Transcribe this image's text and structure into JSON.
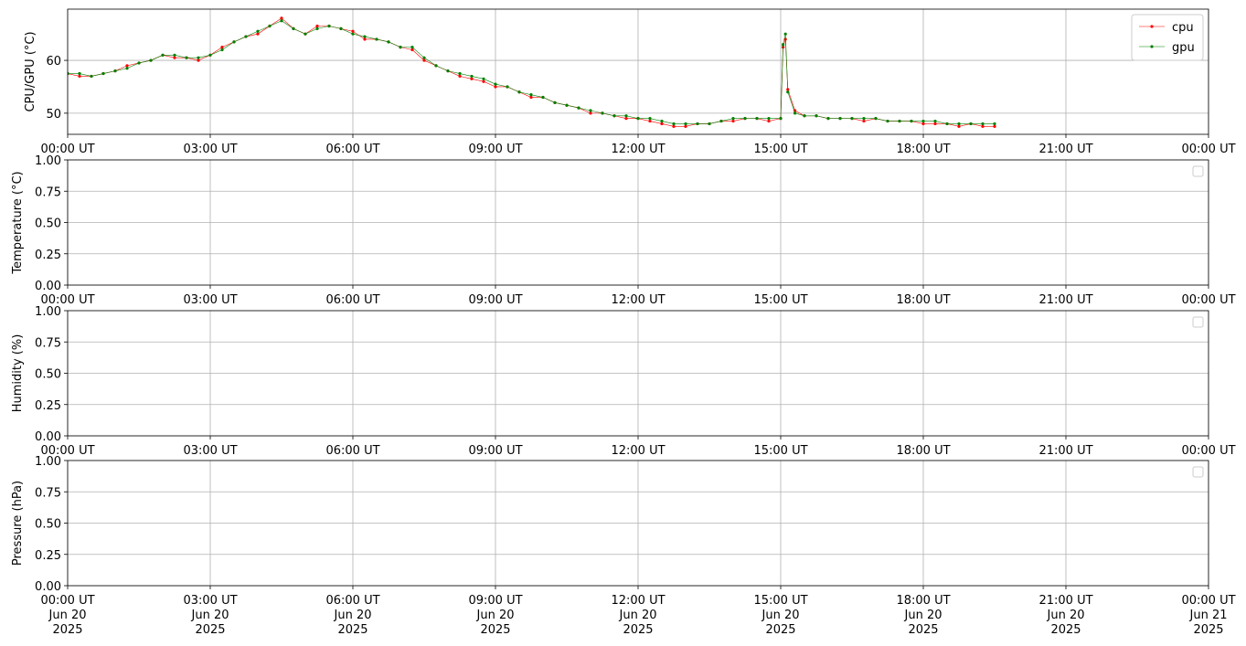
{
  "chart_data": [
    {
      "type": "line",
      "ylabel": "CPU/GPU (°C)",
      "grid": true,
      "legend": "upper right",
      "xlim": [
        0,
        24
      ],
      "xticks": [
        {
          "value": 0,
          "label": "00:00 UT"
        },
        {
          "value": 3,
          "label": "03:00 UT"
        },
        {
          "value": 6,
          "label": "06:00 UT"
        },
        {
          "value": 9,
          "label": "09:00 UT"
        },
        {
          "value": 12,
          "label": "12:00 UT"
        },
        {
          "value": 15,
          "label": "15:00 UT"
        },
        {
          "value": 18,
          "label": "18:00 UT"
        },
        {
          "value": 21,
          "label": "21:00 UT"
        },
        {
          "value": 24,
          "label": "00:00 UT"
        }
      ],
      "ylim": [
        46.0,
        69.7
      ],
      "yticks": [
        50,
        60
      ],
      "x": [
        0,
        0.25,
        0.5,
        0.75,
        1,
        1.25,
        1.5,
        1.75,
        2,
        2.25,
        2.5,
        2.75,
        3,
        3.25,
        3.5,
        3.75,
        4,
        4.25,
        4.5,
        4.75,
        5,
        5.25,
        5.5,
        5.75,
        6,
        6.25,
        6.5,
        6.75,
        7,
        7.25,
        7.5,
        7.75,
        8,
        8.25,
        8.5,
        8.75,
        9,
        9.25,
        9.5,
        9.75,
        10,
        10.25,
        10.5,
        10.75,
        11,
        11.25,
        11.5,
        11.75,
        12,
        12.25,
        12.5,
        12.75,
        13,
        13.25,
        13.5,
        13.75,
        14,
        14.25,
        14.5,
        14.75,
        15,
        15.05,
        15.1,
        15.15,
        15.3,
        15.5,
        15.75,
        16,
        16.25,
        16.5,
        16.75,
        17,
        17.25,
        17.5,
        17.75,
        18,
        18.25,
        18.5,
        18.75,
        19,
        19.25,
        19.5
      ],
      "series": [
        {
          "name": "cpu",
          "color": "#ff0000",
          "values": [
            57.5,
            57,
            57,
            57.5,
            58,
            59,
            59.5,
            60,
            61,
            60.5,
            60.5,
            60,
            61,
            62.5,
            63.5,
            64.5,
            65,
            66.5,
            68,
            66,
            65,
            66.5,
            66.5,
            66,
            65.5,
            64,
            64,
            63.5,
            62.5,
            62,
            60,
            59,
            58,
            57,
            56.5,
            56,
            55,
            55,
            54,
            53,
            53,
            52,
            51.5,
            51,
            50,
            50,
            49.5,
            49,
            49,
            48.5,
            48,
            47.5,
            47.5,
            48,
            48,
            48.5,
            48.5,
            49,
            49,
            48.5,
            49,
            62.5,
            64,
            54.5,
            50.5,
            49.5,
            49.5,
            49,
            49,
            49,
            48.5,
            49,
            48.5,
            48.5,
            48.5,
            48,
            48,
            48,
            47.5,
            48,
            47.5,
            47.5
          ]
        },
        {
          "name": "gpu",
          "color": "#008000",
          "values": [
            57.5,
            57.5,
            57,
            57.5,
            58,
            58.5,
            59.5,
            60,
            61,
            61,
            60.5,
            60.5,
            61,
            62,
            63.5,
            64.5,
            65.5,
            66.5,
            67.5,
            66,
            65,
            66,
            66.5,
            66,
            65,
            64.5,
            64,
            63.5,
            62.5,
            62.5,
            60.5,
            59,
            58,
            57.5,
            57,
            56.5,
            55.5,
            55,
            54,
            53.5,
            53,
            52,
            51.5,
            51,
            50.5,
            50,
            49.5,
            49.5,
            49,
            49,
            48.5,
            48,
            48,
            48,
            48,
            48.5,
            49,
            49,
            49,
            49,
            49,
            63,
            65,
            54,
            50,
            49.5,
            49.5,
            49,
            49,
            49,
            49,
            49,
            48.5,
            48.5,
            48.5,
            48.5,
            48.5,
            48,
            48,
            48,
            48,
            48
          ]
        }
      ]
    },
    {
      "type": "line",
      "ylabel": "Temperature (°C)",
      "grid": true,
      "legend": "upper right",
      "xlim": [
        0,
        24
      ],
      "xticks": [
        {
          "value": 0,
          "label": "00:00 UT"
        },
        {
          "value": 3,
          "label": "03:00 UT"
        },
        {
          "value": 6,
          "label": "06:00 UT"
        },
        {
          "value": 9,
          "label": "09:00 UT"
        },
        {
          "value": 12,
          "label": "12:00 UT"
        },
        {
          "value": 15,
          "label": "15:00 UT"
        },
        {
          "value": 18,
          "label": "18:00 UT"
        },
        {
          "value": 21,
          "label": "21:00 UT"
        },
        {
          "value": 24,
          "label": "00:00 UT"
        }
      ],
      "ylim": [
        0,
        1
      ],
      "yticks": [
        {
          "value": 0,
          "label": "0.00"
        },
        {
          "value": 0.25,
          "label": "0.25"
        },
        {
          "value": 0.5,
          "label": "0.50"
        },
        {
          "value": 0.75,
          "label": "0.75"
        },
        {
          "value": 1,
          "label": "1.00"
        }
      ],
      "series": []
    },
    {
      "type": "line",
      "ylabel": "Humidity (%)",
      "grid": true,
      "legend": "upper right",
      "xlim": [
        0,
        24
      ],
      "xticks": [
        {
          "value": 0,
          "label": "00:00 UT"
        },
        {
          "value": 3,
          "label": "03:00 UT"
        },
        {
          "value": 6,
          "label": "06:00 UT"
        },
        {
          "value": 9,
          "label": "09:00 UT"
        },
        {
          "value": 12,
          "label": "12:00 UT"
        },
        {
          "value": 15,
          "label": "15:00 UT"
        },
        {
          "value": 18,
          "label": "18:00 UT"
        },
        {
          "value": 21,
          "label": "21:00 UT"
        },
        {
          "value": 24,
          "label": "00:00 UT"
        }
      ],
      "ylim": [
        0,
        1
      ],
      "yticks": [
        {
          "value": 0,
          "label": "0.00"
        },
        {
          "value": 0.25,
          "label": "0.25"
        },
        {
          "value": 0.5,
          "label": "0.50"
        },
        {
          "value": 0.75,
          "label": "0.75"
        },
        {
          "value": 1,
          "label": "1.00"
        }
      ],
      "series": []
    },
    {
      "type": "line",
      "ylabel": "Pressure (hPa)",
      "grid": true,
      "legend": "upper right",
      "xlim": [
        0,
        24
      ],
      "xticks": [
        {
          "value": 0,
          "label": "00:00 UT\nJun 20\n2025"
        },
        {
          "value": 3,
          "label": "03:00 UT\nJun 20\n2025"
        },
        {
          "value": 6,
          "label": "06:00 UT\nJun 20\n2025"
        },
        {
          "value": 9,
          "label": "09:00 UT\nJun 20\n2025"
        },
        {
          "value": 12,
          "label": "12:00 UT\nJun 20\n2025"
        },
        {
          "value": 15,
          "label": "15:00 UT\nJun 20\n2025"
        },
        {
          "value": 18,
          "label": "18:00 UT\nJun 20\n2025"
        },
        {
          "value": 21,
          "label": "21:00 UT\nJun 20\n2025"
        },
        {
          "value": 24,
          "label": "00:00 UT\nJun 21\n2025"
        }
      ],
      "ylim": [
        0,
        1
      ],
      "yticks": [
        {
          "value": 0,
          "label": "0.00"
        },
        {
          "value": 0.25,
          "label": "0.25"
        },
        {
          "value": 0.5,
          "label": "0.50"
        },
        {
          "value": 0.75,
          "label": "0.75"
        },
        {
          "value": 1,
          "label": "1.00"
        }
      ],
      "series": []
    }
  ]
}
